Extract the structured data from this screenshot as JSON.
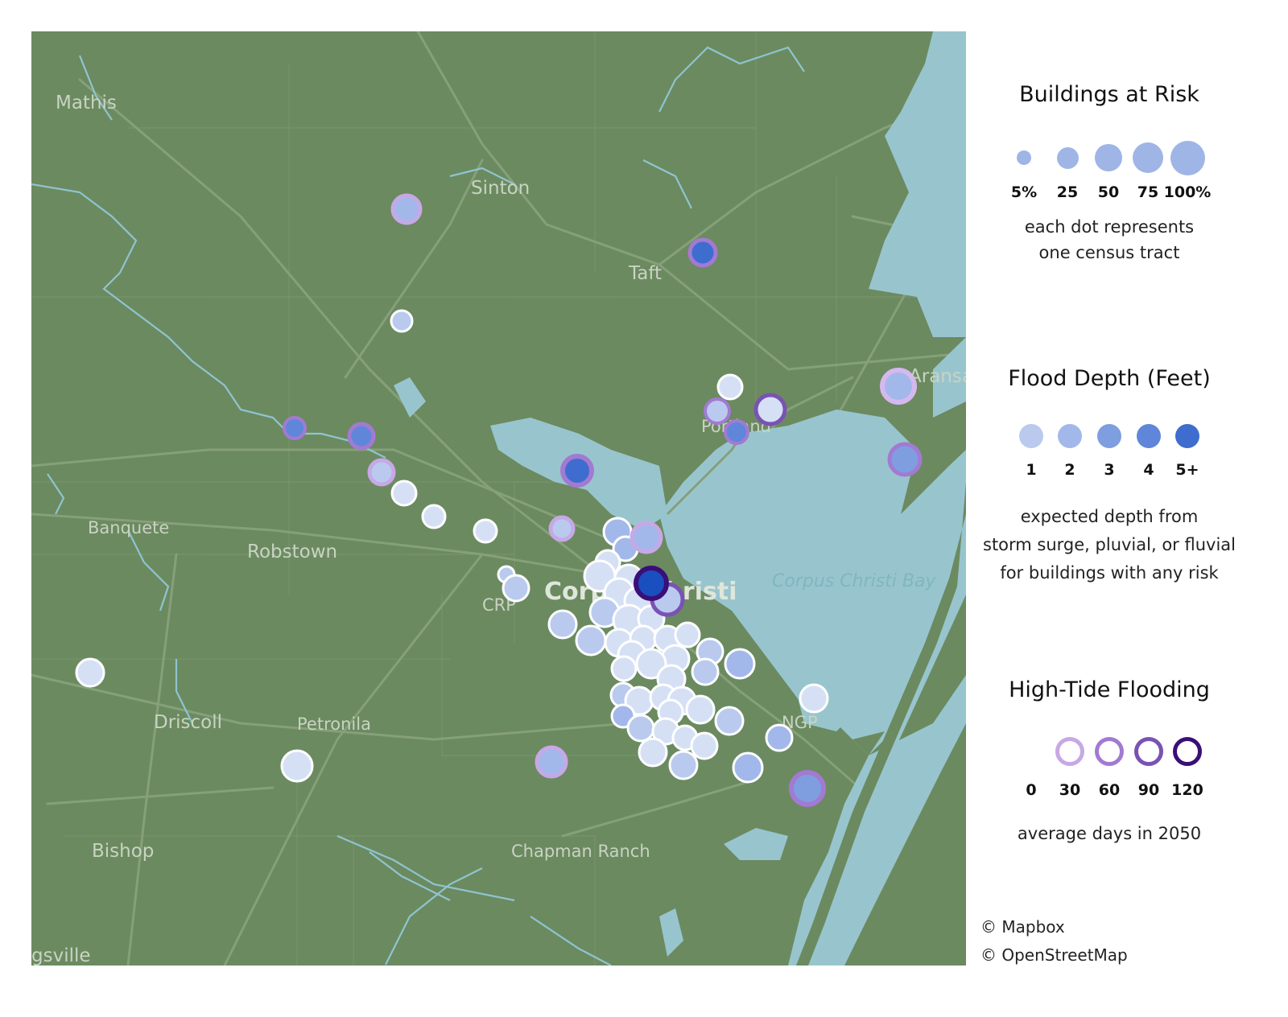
{
  "map": {
    "places": [
      {
        "name": "Mathis",
        "style": "normal"
      },
      {
        "name": "Sinton",
        "style": "normal"
      },
      {
        "name": "Taft",
        "style": "normal"
      },
      {
        "name": "Aransa",
        "style": "normal"
      },
      {
        "name": "Portland",
        "style": "small"
      },
      {
        "name": "Banquete",
        "style": "small"
      },
      {
        "name": "Robstown",
        "style": "normal"
      },
      {
        "name": "CRP",
        "style": "small"
      },
      {
        "name": "Corpus Christi",
        "style": "big"
      },
      {
        "name": "Corpus Christi Bay",
        "style": "water"
      },
      {
        "name": "NGP",
        "style": "small"
      },
      {
        "name": "Driscoll",
        "style": "normal"
      },
      {
        "name": "Petronila",
        "style": "small"
      },
      {
        "name": "Bishop",
        "style": "normal"
      },
      {
        "name": "Chapman Ranch",
        "style": "small"
      },
      {
        "name": "gsville",
        "style": "normal"
      }
    ],
    "colors": {
      "land": "#6b8a60",
      "water": "#98c5cd",
      "roads": "#86a07a",
      "rivers": "#8fc4cf"
    }
  },
  "legend": {
    "risk": {
      "title": "Buildings at Risk",
      "labels": [
        "5%",
        "25",
        "50",
        "75",
        "100%"
      ],
      "values": [
        5,
        25,
        50,
        75,
        100
      ],
      "note_lines": [
        "each dot represents",
        "one census tract"
      ],
      "color": "#9fb5e6"
    },
    "depth": {
      "title": "Flood Depth (Feet)",
      "labels": [
        "1",
        "2",
        "3",
        "4",
        "5+"
      ],
      "colors": [
        "#b9caee",
        "#a3b8ea",
        "#7f9ee0",
        "#5f86d9",
        "#3f6ccf"
      ],
      "note_lines": [
        "expected depth from",
        "storm surge, pluvial, or fluvial",
        "for buildings with any risk"
      ]
    },
    "tide": {
      "title": "High-Tide Flooding",
      "labels": [
        "0",
        "30",
        "60",
        "90",
        "120"
      ],
      "ring_colors": [
        "#c7a8e6",
        "#a27ad2",
        "#7a52b4",
        "#3b0e78"
      ],
      "note_lines": [
        "average days in 2050"
      ]
    }
  },
  "credits": [
    "© Mapbox",
    "© OpenStreetMap"
  ]
}
